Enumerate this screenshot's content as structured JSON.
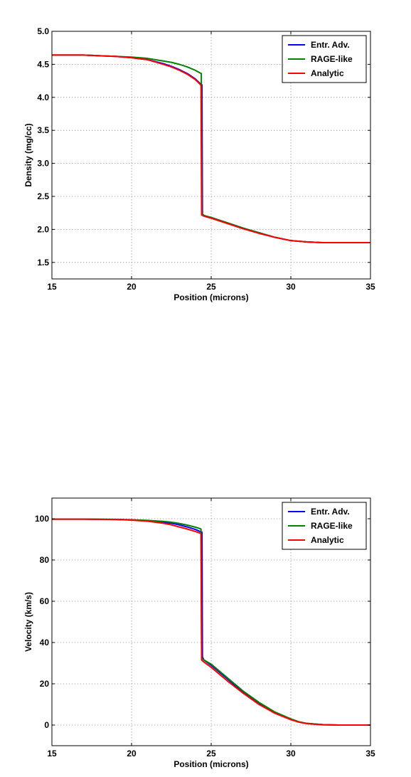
{
  "chart_data": [
    {
      "type": "line",
      "xlabel": "Position (microns)",
      "ylabel": "Density (mg/cc)",
      "xlim": [
        15,
        35
      ],
      "ylim": [
        1.25,
        5.0
      ],
      "xticks": [
        "15",
        "20",
        "25",
        "30",
        "35"
      ],
      "yticks": [
        "1.5",
        "2.0",
        "2.5",
        "3.0",
        "3.5",
        "4.0",
        "4.5",
        "5.0"
      ],
      "grid": true,
      "legend_position": "top-right",
      "series": [
        {
          "name": "Entr. Adv.",
          "color": "#0000ff",
          "x": [
            15,
            16,
            17,
            18,
            19,
            20,
            21,
            22,
            22.5,
            23,
            23.5,
            24,
            24.3,
            24.42,
            24.45,
            24.55,
            25,
            26,
            27,
            28,
            29,
            30,
            31,
            32,
            33,
            34,
            35
          ],
          "y": [
            4.64,
            4.64,
            4.64,
            4.63,
            4.62,
            4.6,
            4.57,
            4.51,
            4.47,
            4.42,
            4.36,
            4.28,
            4.21,
            4.19,
            2.23,
            2.21,
            2.18,
            2.1,
            2.02,
            1.95,
            1.88,
            1.83,
            1.81,
            1.8,
            1.8,
            1.8,
            1.8
          ]
        },
        {
          "name": "RAGE-like",
          "color": "#008000",
          "x": [
            15,
            16,
            17,
            18,
            19,
            20,
            21,
            22,
            22.5,
            23,
            23.5,
            24,
            24.3,
            24.38,
            24.42,
            24.55,
            25,
            26,
            27,
            28,
            29,
            30,
            31,
            32,
            33,
            34,
            35
          ],
          "y": [
            4.64,
            4.64,
            4.64,
            4.63,
            4.62,
            4.61,
            4.59,
            4.55,
            4.53,
            4.5,
            4.46,
            4.41,
            4.37,
            4.36,
            2.24,
            2.21,
            2.18,
            2.1,
            2.02,
            1.95,
            1.88,
            1.83,
            1.81,
            1.8,
            1.8,
            1.8,
            1.8
          ]
        },
        {
          "name": "Analytic",
          "color": "#ff0000",
          "x": [
            15,
            16,
            17,
            18,
            19,
            20,
            21,
            22,
            22.5,
            23,
            23.5,
            24,
            24.3,
            24.36,
            24.4,
            24.55,
            25,
            26,
            27,
            28,
            29,
            30,
            31,
            32,
            33,
            34,
            35
          ],
          "y": [
            4.64,
            4.64,
            4.64,
            4.63,
            4.62,
            4.6,
            4.57,
            4.5,
            4.46,
            4.41,
            4.35,
            4.27,
            4.2,
            4.18,
            2.22,
            2.2,
            2.17,
            2.09,
            2.01,
            1.94,
            1.88,
            1.83,
            1.81,
            1.8,
            1.8,
            1.8,
            1.8
          ]
        }
      ]
    },
    {
      "type": "line",
      "xlabel": "Position (microns)",
      "ylabel": "Velocity (km/s)",
      "xlim": [
        15,
        35
      ],
      "ylim": [
        -10,
        110
      ],
      "xticks": [
        "15",
        "20",
        "25",
        "30",
        "35"
      ],
      "yticks": [
        "0",
        "20",
        "40",
        "60",
        "80",
        "100"
      ],
      "grid": true,
      "legend_position": "top-right",
      "series": [
        {
          "name": "Entr. Adv.",
          "color": "#0000ff",
          "x": [
            15,
            17,
            19,
            20,
            21,
            22,
            22.5,
            23,
            23.5,
            24,
            24.3,
            24.42,
            24.45,
            24.55,
            25,
            26,
            27,
            28,
            29,
            30,
            30.5,
            31,
            32,
            33,
            34,
            35
          ],
          "y": [
            99.8,
            99.8,
            99.6,
            99.4,
            99,
            98.3,
            97.8,
            97,
            96,
            94.8,
            93.8,
            93.5,
            33,
            31.5,
            29,
            22.5,
            16,
            10.5,
            6,
            2.8,
            1.5,
            0.8,
            0.2,
            0,
            0,
            0
          ]
        },
        {
          "name": "RAGE-like",
          "color": "#008000",
          "x": [
            15,
            17,
            19,
            20,
            21,
            22,
            22.5,
            23,
            23.5,
            24,
            24.3,
            24.36,
            24.4,
            24.55,
            25,
            26,
            27,
            28,
            29,
            30,
            30.5,
            31,
            32,
            33,
            34,
            35
          ],
          "y": [
            99.8,
            99.8,
            99.7,
            99.5,
            99.2,
            98.7,
            98.3,
            97.7,
            96.9,
            95.9,
            95.2,
            95,
            32.5,
            31.5,
            29.5,
            23,
            16.5,
            11,
            6.3,
            3,
            1.6,
            0.8,
            0.2,
            0,
            0,
            0
          ]
        },
        {
          "name": "Analytic",
          "color": "#ff0000",
          "x": [
            15,
            17,
            19,
            20,
            21,
            22,
            22.5,
            23,
            23.5,
            24,
            24.3,
            24.36,
            24.4,
            24.55,
            25,
            26,
            27,
            28,
            29,
            30,
            30.5,
            31,
            32,
            33,
            34,
            35
          ],
          "y": [
            99.8,
            99.8,
            99.6,
            99.3,
            98.8,
            97.8,
            97,
            96,
            95,
            93.8,
            93,
            92.8,
            31.5,
            30.5,
            28,
            21.5,
            15.5,
            10,
            5.7,
            2.6,
            1.4,
            0.7,
            0.1,
            0,
            0,
            0
          ]
        }
      ]
    }
  ]
}
